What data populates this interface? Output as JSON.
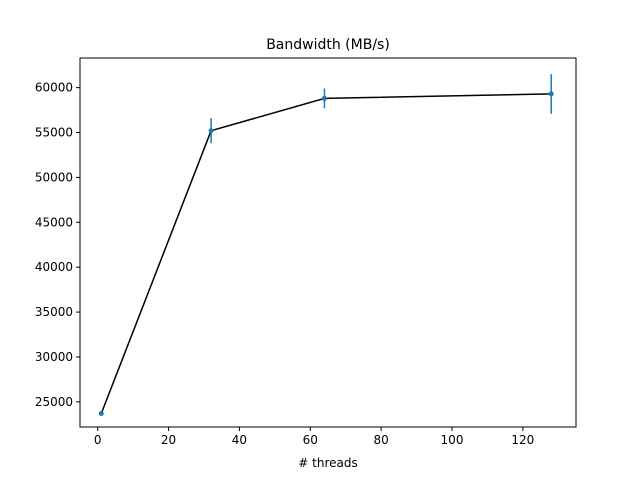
{
  "chart_data": {
    "type": "line",
    "title": "Bandwidth (MB/s)",
    "xlabel": "# threads",
    "ylabel": "",
    "xlim": [
      -5,
      135
    ],
    "ylim": [
      22200,
      63300
    ],
    "xticks": [
      0,
      20,
      40,
      60,
      80,
      100,
      120
    ],
    "yticks": [
      25000,
      30000,
      35000,
      40000,
      45000,
      50000,
      55000,
      60000
    ],
    "grid": false,
    "series": [
      {
        "x": [
          1,
          32,
          64,
          128
        ],
        "y": [
          23700,
          55200,
          58800,
          59300
        ],
        "yerr": [
          150,
          1400,
          1100,
          2200
        ],
        "line_color": "#000000",
        "marker_color": "#1f77b4"
      }
    ]
  }
}
